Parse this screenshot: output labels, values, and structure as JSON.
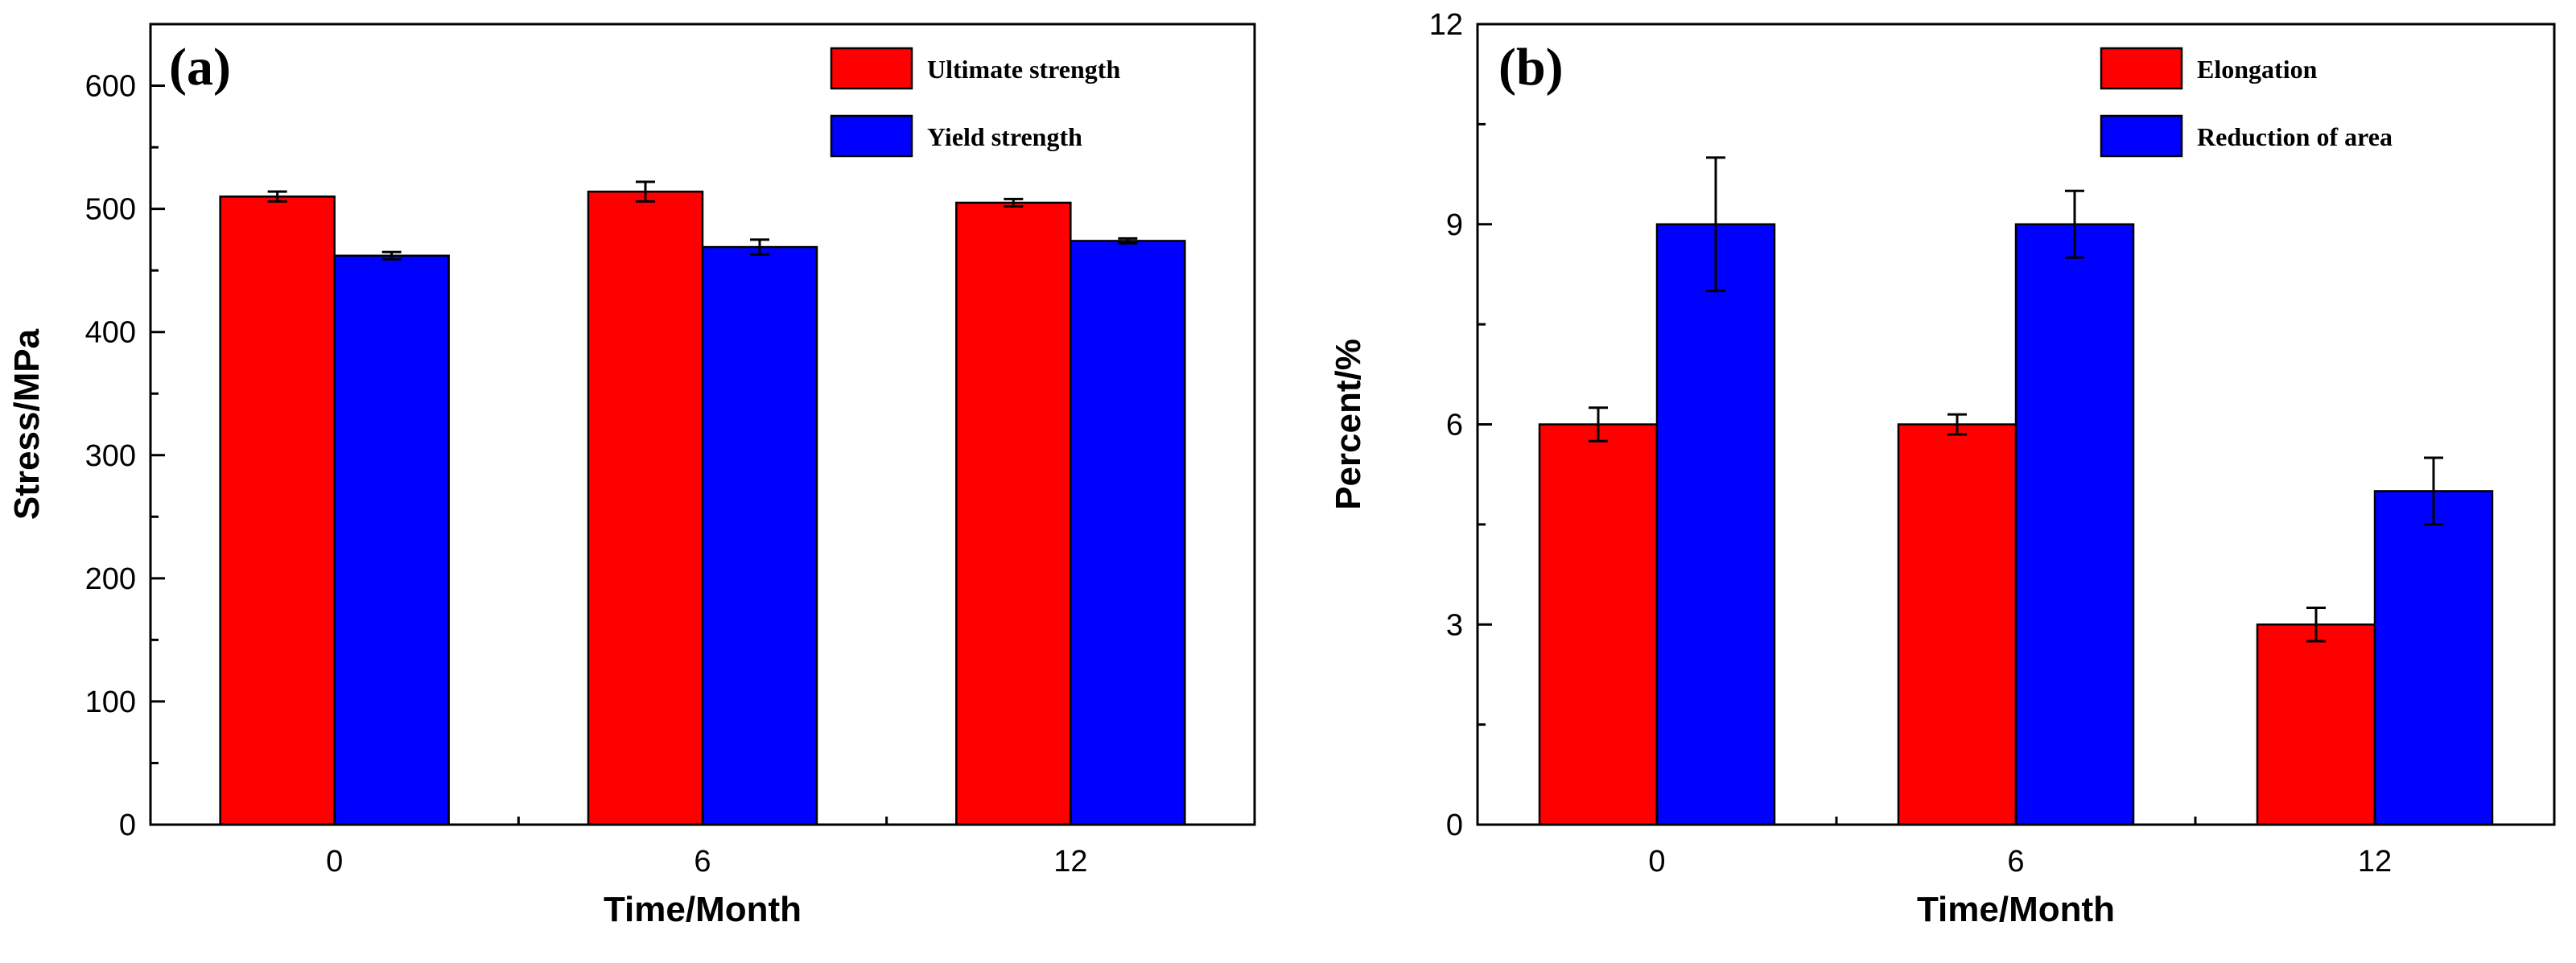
{
  "chart_data": [
    {
      "type": "bar",
      "panel_label": "(a)",
      "categories": [
        "0",
        "6",
        "12"
      ],
      "xlabel": "Time/Month",
      "ylabel": "Stress/MPa",
      "ylim": [
        0,
        650
      ],
      "yticks": [
        0,
        100,
        200,
        300,
        400,
        500,
        600
      ],
      "legend_position": "top-right",
      "series": [
        {
          "name": "Ultimate strength",
          "color": "#ff0000",
          "values": [
            510,
            514,
            505
          ],
          "errors": [
            4,
            8,
            3
          ]
        },
        {
          "name": "Yield strength",
          "color": "#0000ff",
          "values": [
            462,
            469,
            474
          ],
          "errors": [
            3,
            6,
            2
          ]
        }
      ]
    },
    {
      "type": "bar",
      "panel_label": "(b)",
      "categories": [
        "0",
        "6",
        "12"
      ],
      "xlabel": "Time/Month",
      "ylabel": "Percent/%",
      "ylim": [
        0,
        12
      ],
      "yticks": [
        0,
        3,
        6,
        9,
        12
      ],
      "legend_position": "top-right",
      "series": [
        {
          "name": "Elongation",
          "color": "#ff0000",
          "values": [
            6,
            6,
            3
          ],
          "errors": [
            0.25,
            0.15,
            0.25
          ]
        },
        {
          "name": "Reduction of area",
          "color": "#0000ff",
          "values": [
            9,
            9,
            5
          ],
          "errors": [
            1,
            0.5,
            0.5
          ]
        }
      ]
    }
  ]
}
